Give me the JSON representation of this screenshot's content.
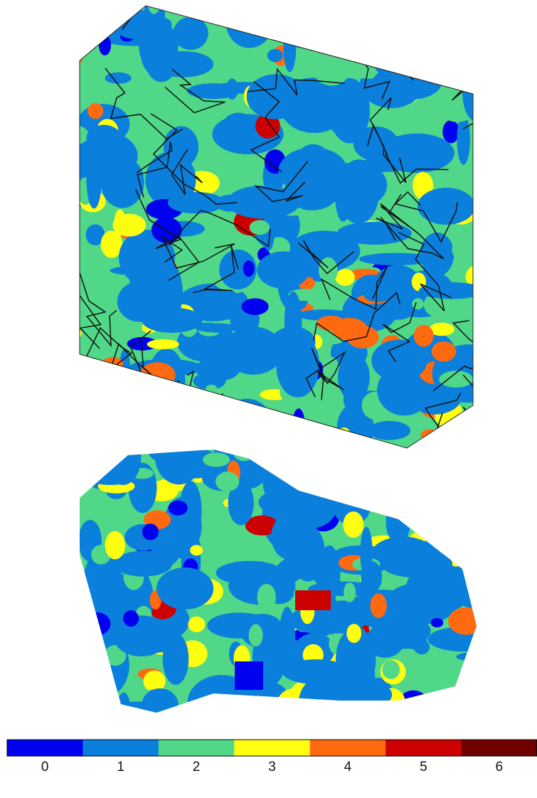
{
  "colorbar": {
    "ticks": [
      0,
      1,
      2,
      3,
      4,
      5,
      6
    ],
    "colors": [
      "#0000f0",
      "#0a7fdc",
      "#50d888",
      "#ffff10",
      "#ff6a10",
      "#cc0000",
      "#700000"
    ]
  }
}
